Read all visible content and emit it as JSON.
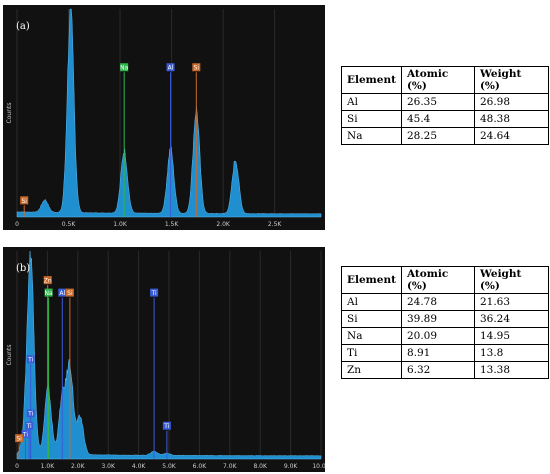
{
  "chart_data": [
    {
      "type": "area",
      "panel_label": "(a)",
      "ylabel": "Counts",
      "xlim": [
        0,
        2.95
      ],
      "ylim": [
        0,
        1
      ],
      "x_ticks": [
        {
          "x": 0,
          "label": "0"
        },
        {
          "x": 0.5,
          "label": "0.5K"
        },
        {
          "x": 1.0,
          "label": "1.0K"
        },
        {
          "x": 1.5,
          "label": "1.5K"
        },
        {
          "x": 2.0,
          "label": "2.0K"
        },
        {
          "x": 2.5,
          "label": "2.5K"
        }
      ],
      "series_color": "#1f8fd0",
      "peaks": [
        {
          "x": 0.27,
          "h": 0.06
        },
        {
          "x": 0.52,
          "h": 0.97
        },
        {
          "x": 1.04,
          "h": 0.3
        },
        {
          "x": 1.49,
          "h": 0.31
        },
        {
          "x": 1.74,
          "h": 0.5
        },
        {
          "x": 2.12,
          "h": 0.26
        }
      ],
      "markers": [
        {
          "label": "Na",
          "x": 1.04,
          "top": 0.72,
          "bottom": 0.0,
          "color": "#2db84a"
        },
        {
          "label": "Al",
          "x": 1.49,
          "top": 0.72,
          "bottom": 0.0,
          "color": "#3a5bd8"
        },
        {
          "label": "Si",
          "x": 1.74,
          "top": 0.72,
          "bottom": 0.0,
          "color": "#c8692a"
        },
        {
          "label": "Si",
          "x": 0.07,
          "top": 0.08,
          "bottom": 0.0,
          "color": "#c8692a"
        }
      ]
    },
    {
      "type": "area",
      "panel_label": "(b)",
      "ylabel": "Counts",
      "xlim": [
        0,
        10.0
      ],
      "ylim": [
        0,
        1
      ],
      "x_ticks": [
        {
          "x": 0,
          "label": "0"
        },
        {
          "x": 1,
          "label": "1.0K"
        },
        {
          "x": 2,
          "label": "2.0K"
        },
        {
          "x": 3,
          "label": "3.0K"
        },
        {
          "x": 4,
          "label": "4.0K"
        },
        {
          "x": 5,
          "label": "5.0K"
        },
        {
          "x": 6,
          "label": "6.0K"
        },
        {
          "x": 7,
          "label": "7.0K"
        },
        {
          "x": 8,
          "label": "8.0K"
        },
        {
          "x": 9,
          "label": "9.0K"
        },
        {
          "x": 10,
          "label": "10.0K"
        }
      ],
      "series_color": "#1f8fd0",
      "peaks": [
        {
          "x": 0.28,
          "h": 0.1
        },
        {
          "x": 0.45,
          "h": 0.95
        },
        {
          "x": 1.02,
          "h": 0.32
        },
        {
          "x": 1.49,
          "h": 0.27
        },
        {
          "x": 1.74,
          "h": 0.42
        },
        {
          "x": 2.08,
          "h": 0.18
        },
        {
          "x": 4.51,
          "h": 0.02
        },
        {
          "x": 4.93,
          "h": 0.01
        }
      ],
      "markers": [
        {
          "label": "Zn",
          "x": 1.01,
          "top": 0.86,
          "bottom": 0.0,
          "color": "#c8692a"
        },
        {
          "label": "Na",
          "x": 1.04,
          "top": 0.8,
          "bottom": 0.0,
          "color": "#2db84a"
        },
        {
          "label": "Al",
          "x": 1.49,
          "top": 0.8,
          "bottom": 0.0,
          "color": "#3a5bd8"
        },
        {
          "label": "Si",
          "x": 1.74,
          "top": 0.8,
          "bottom": 0.0,
          "color": "#c8692a"
        },
        {
          "label": "Ti",
          "x": 4.51,
          "top": 0.8,
          "bottom": 0.0,
          "color": "#3a5bd8"
        },
        {
          "label": "Ti",
          "x": 0.45,
          "top": 0.48,
          "bottom": 0.0,
          "color": "#3a5bd8"
        },
        {
          "label": "Ti",
          "x": 0.45,
          "top": 0.22,
          "bottom": 0.0,
          "color": "#3a5bd8"
        },
        {
          "label": "Ti",
          "x": 0.4,
          "top": 0.16,
          "bottom": 0.0,
          "color": "#3a5bd8"
        },
        {
          "label": "Ti",
          "x": 4.93,
          "top": 0.16,
          "bottom": 0.0,
          "color": "#3a5bd8"
        },
        {
          "label": "Ti",
          "x": 0.28,
          "top": 0.12,
          "bottom": 0.0,
          "color": "#3a5bd8"
        },
        {
          "label": "Si",
          "x": 0.07,
          "top": 0.1,
          "bottom": 0.0,
          "color": "#c8692a"
        }
      ]
    }
  ],
  "tables": {
    "a": {
      "headers": [
        "Element",
        "Atomic (%)",
        "Weight (%)"
      ],
      "rows": [
        [
          "Al",
          "26.35",
          "26.98"
        ],
        [
          "Si",
          "45.4",
          "48.38"
        ],
        [
          "Na",
          "28.25",
          "24.64"
        ]
      ]
    },
    "b": {
      "headers": [
        "Element",
        "Atomic (%)",
        "Weight (%)"
      ],
      "rows": [
        [
          "Al",
          "24.78",
          "21.63"
        ],
        [
          "Si",
          "39.89",
          "36.24"
        ],
        [
          "Na",
          "20.09",
          "14.95"
        ],
        [
          "Ti",
          "8.91",
          "13.8"
        ],
        [
          "Zn",
          "6.32",
          "13.38"
        ]
      ]
    }
  }
}
